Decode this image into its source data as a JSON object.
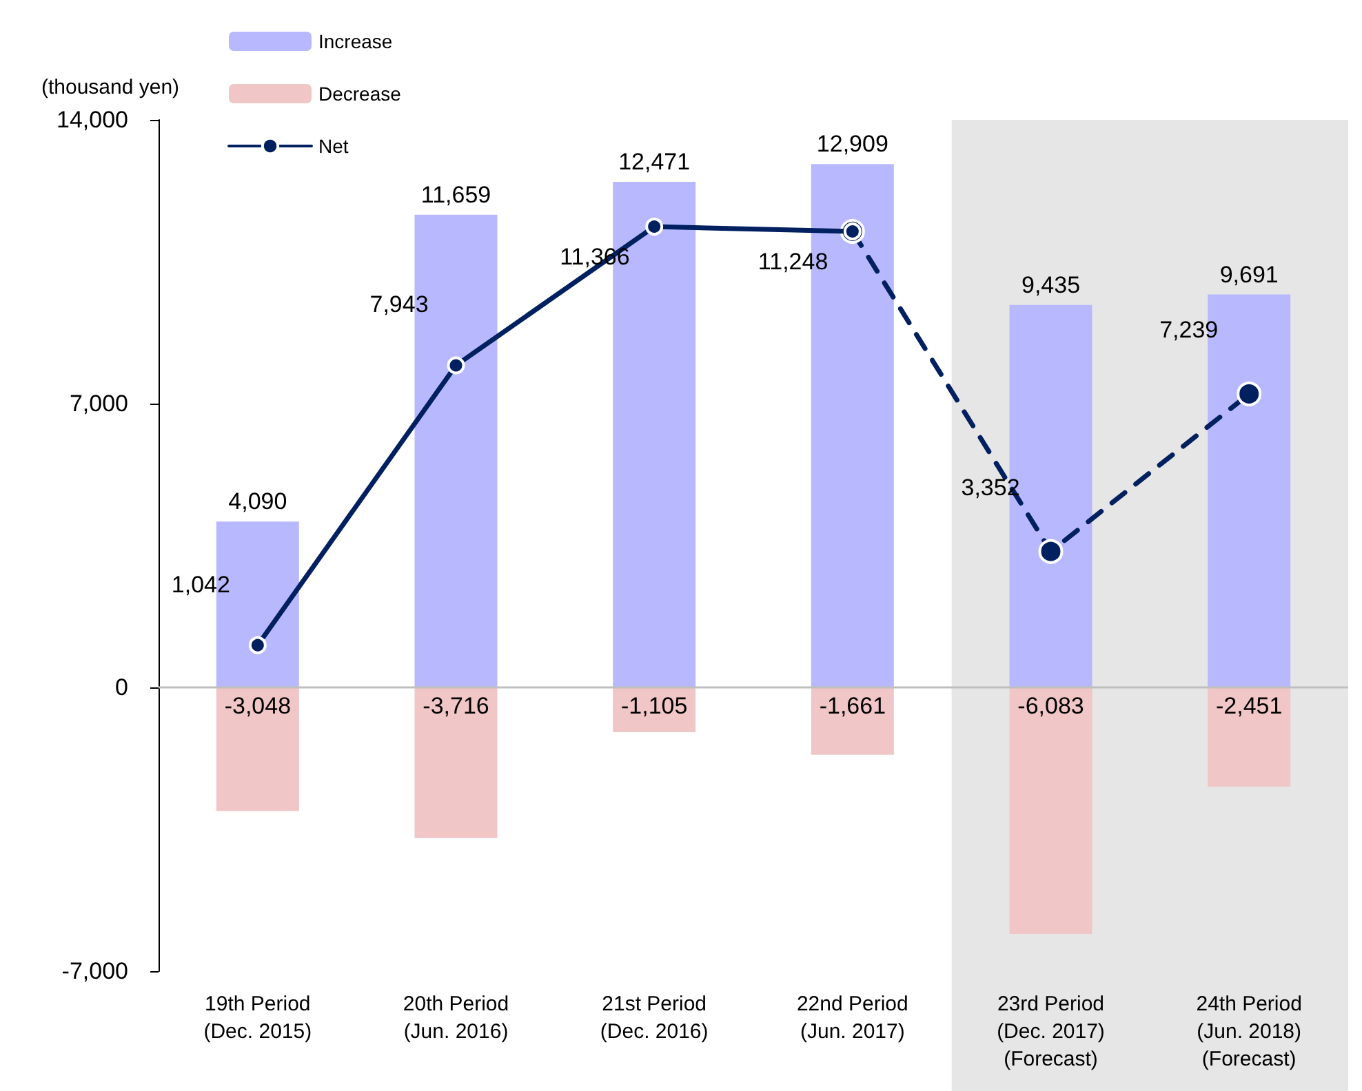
{
  "chart_data": {
    "type": "bar",
    "stacked": true,
    "ylabel": "(thousand yen)",
    "categories": [
      "19th Period\n(Dec. 2015)",
      "20th Period\n(Jun. 2016)",
      "21st Period\n(Dec. 2016)",
      "22nd Period\n(Jun. 2017)",
      "23rd Period\n(Dec. 2017)\n(Forecast)",
      "24th Period\n(Jun. 2018)\n(Forecast)"
    ],
    "series": [
      {
        "name": "Increase",
        "color": "#b8b8ff",
        "values": [
          4090,
          11659,
          12471,
          12909,
          9435,
          9691
        ],
        "value_labels": [
          "4,090",
          "11,659",
          "12,471",
          "12,909",
          "9,435",
          "9,691"
        ]
      },
      {
        "name": "Decrease",
        "color": "#f0c6c6",
        "values": [
          -3048,
          -3716,
          -1105,
          -1661,
          -6083,
          -2451
        ],
        "value_labels": [
          "-3,048",
          "-3,716",
          "-1,105",
          "-1,661",
          "-6,083",
          "-2,451"
        ]
      },
      {
        "name": "Net",
        "type": "line",
        "color": "#002060",
        "line_style": "solid",
        "marker": "circle",
        "values": [
          1042,
          7943,
          11366,
          11248,
          null,
          null
        ],
        "value_labels": [
          "1,042",
          "7,943",
          "11,366",
          "11,248",
          null,
          null
        ]
      },
      {
        "type": "line",
        "color": "#002060",
        "line_style": "dashed",
        "marker": "circle",
        "values": [
          null,
          null,
          null,
          11248,
          3352,
          7239
        ],
        "value_labels": [
          null,
          null,
          null,
          null,
          "3,352",
          "7,239"
        ]
      }
    ],
    "ylim": [
      -7000,
      14000
    ],
    "yticks": [
      {
        "value": -7000,
        "label": "-7,000"
      },
      {
        "value": 0,
        "label": "0"
      },
      {
        "value": 7000,
        "label": "7,000"
      },
      {
        "value": 14000,
        "label": "14,000"
      }
    ],
    "ref_lines": [
      {
        "axis": "y",
        "value": 0,
        "color": "#bfbfbf"
      }
    ],
    "bands": [
      {
        "axis": "x",
        "from": "23rd Period\n(Dec. 2017)\n(Forecast)",
        "to": "24th Period\n(Jun. 2018)\n(Forecast)",
        "color": "#e6e6e6"
      }
    ],
    "legend": "top left",
    "grid": false
  }
}
